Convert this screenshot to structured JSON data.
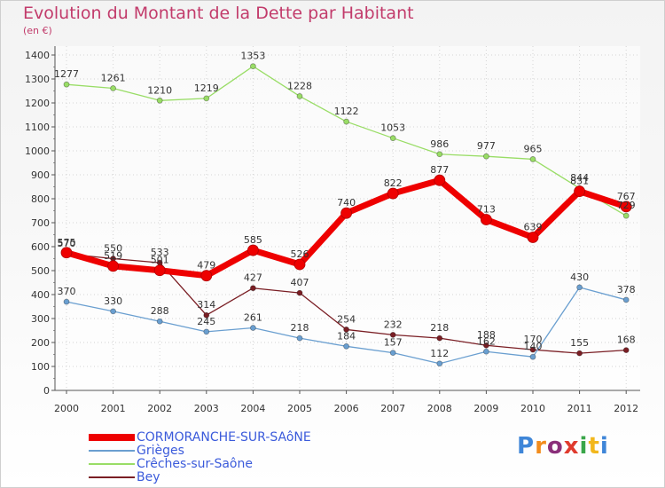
{
  "header": {
    "title": "Evolution du Montant de la Dette par Habitant",
    "subtitle": "(en €)"
  },
  "chart_data": {
    "type": "line",
    "title": "Evolution du Montant de la Dette par Habitant",
    "subtitle": "(en €)",
    "xlabel": "",
    "ylabel": "",
    "x": [
      "2000",
      "2001",
      "2002",
      "2003",
      "2004",
      "2005",
      "2006",
      "2007",
      "2008",
      "2009",
      "2010",
      "2011",
      "2012"
    ],
    "ylim": [
      0,
      1400
    ],
    "y_ticks": [
      0,
      100,
      200,
      300,
      400,
      500,
      600,
      700,
      800,
      900,
      1000,
      1100,
      1200,
      1300,
      1400
    ],
    "grid": true,
    "legend_position": "bottom-left",
    "series": [
      {
        "name": "CORMORANCHE-SUR-SAôNE",
        "color": "#ee0000",
        "values": [
          575,
          519,
          501,
          479,
          585,
          526,
          740,
          822,
          877,
          713,
          639,
          831,
          767
        ]
      },
      {
        "name": "Grièges",
        "color": "#6a9fd0",
        "values": [
          370,
          330,
          288,
          245,
          261,
          218,
          184,
          157,
          112,
          162,
          140,
          430,
          378
        ]
      },
      {
        "name": "Crêches-sur-Saône",
        "color": "#99dd66",
        "values": [
          1277,
          1261,
          1210,
          1219,
          1353,
          1228,
          1122,
          1053,
          986,
          977,
          965,
          844,
          729
        ]
      },
      {
        "name": "Bey",
        "color": "#7a1e24",
        "values": [
          570,
          550,
          533,
          314,
          427,
          407,
          254,
          232,
          218,
          188,
          170,
          155,
          168
        ]
      }
    ]
  },
  "legend": {
    "items": [
      {
        "label": "CORMORANCHE-SUR-SAôNE",
        "color": "#ee0000"
      },
      {
        "label": "Grièges",
        "color": "#6a9fd0"
      },
      {
        "label": "Crêches-sur-Saône",
        "color": "#99dd66"
      },
      {
        "label": "Bey",
        "color": "#7a1e24"
      }
    ]
  },
  "logo": {
    "text": "Proxiti",
    "letter_colors": [
      "#3f86d8",
      "#f28c1c",
      "#8a2f7a",
      "#e03b2e",
      "#3aa64a",
      "#f2b71c",
      "#3f86d8"
    ]
  }
}
